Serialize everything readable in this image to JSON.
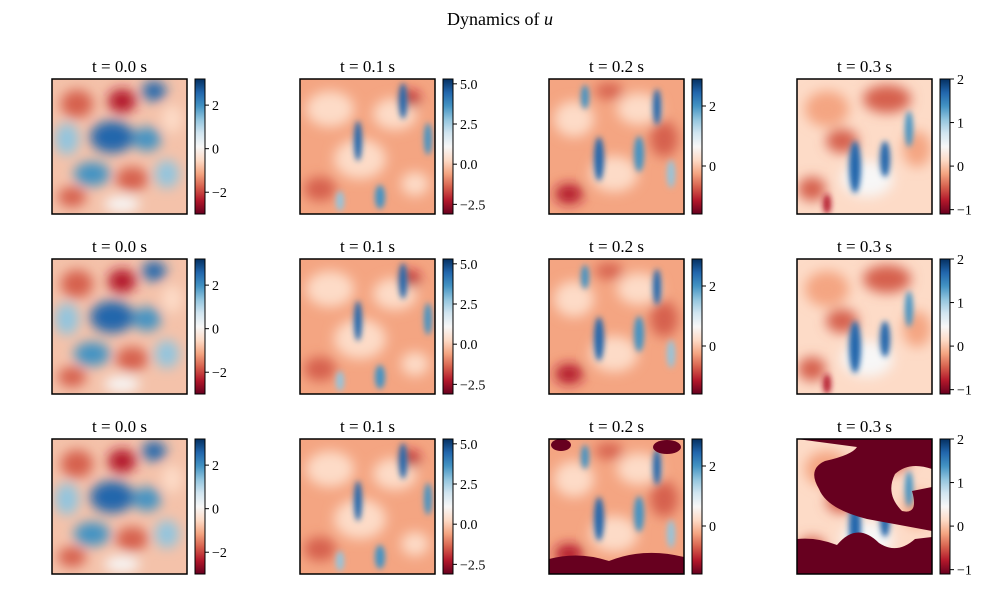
{
  "figure": {
    "title_prefix": "Dynamics of ",
    "title_symbol": "u"
  },
  "colors": {
    "colormap": "RdBu",
    "axes_frame": "#000000",
    "background": "#ffffff",
    "saturated_low": "#67001f"
  },
  "chart_data": [
    {
      "type": "heatmap",
      "row": 0,
      "col": 0,
      "title": "t = 0.0 s",
      "colormap": "RdBu",
      "clim": [
        -3.0,
        3.2
      ],
      "colorbar_ticks": [
        -2,
        0,
        2
      ],
      "colorbar_tick_labels": [
        "−2",
        "0",
        "2"
      ],
      "field_variant": 0,
      "saturated_low_regions": 0
    },
    {
      "type": "heatmap",
      "row": 0,
      "col": 1,
      "title": "t = 0.1 s",
      "colormap": "RdBu",
      "clim": [
        -3.1,
        5.3
      ],
      "colorbar_ticks": [
        -2.5,
        0.0,
        2.5,
        5.0
      ],
      "colorbar_tick_labels": [
        "−2.5",
        "0.0",
        "2.5",
        "5.0"
      ],
      "field_variant": 1,
      "saturated_low_regions": 0
    },
    {
      "type": "heatmap",
      "row": 0,
      "col": 2,
      "title": "t = 0.2 s",
      "colormap": "RdBu",
      "clim": [
        -1.6,
        2.9
      ],
      "colorbar_ticks": [
        0,
        2
      ],
      "colorbar_tick_labels": [
        "0",
        "2"
      ],
      "field_variant": 2,
      "saturated_low_regions": 0
    },
    {
      "type": "heatmap",
      "row": 0,
      "col": 3,
      "title": "t = 0.3 s",
      "colormap": "RdBu",
      "clim": [
        -1.1,
        2.0
      ],
      "colorbar_ticks": [
        -1,
        0,
        1,
        2
      ],
      "colorbar_tick_labels": [
        "−1",
        "0",
        "1",
        "2"
      ],
      "field_variant": 3,
      "saturated_low_regions": 0
    },
    {
      "type": "heatmap",
      "row": 1,
      "col": 0,
      "title": "t = 0.0 s",
      "colormap": "RdBu",
      "clim": [
        -3.0,
        3.2
      ],
      "colorbar_ticks": [
        -2,
        0,
        2
      ],
      "colorbar_tick_labels": [
        "−2",
        "0",
        "2"
      ],
      "field_variant": 0,
      "saturated_low_regions": 0
    },
    {
      "type": "heatmap",
      "row": 1,
      "col": 1,
      "title": "t = 0.1 s",
      "colormap": "RdBu",
      "clim": [
        -3.1,
        5.3
      ],
      "colorbar_ticks": [
        -2.5,
        0.0,
        2.5,
        5.0
      ],
      "colorbar_tick_labels": [
        "−2.5",
        "0.0",
        "2.5",
        "5.0"
      ],
      "field_variant": 1,
      "saturated_low_regions": 0
    },
    {
      "type": "heatmap",
      "row": 1,
      "col": 2,
      "title": "t = 0.2 s",
      "colormap": "RdBu",
      "clim": [
        -1.6,
        2.9
      ],
      "colorbar_ticks": [
        0,
        2
      ],
      "colorbar_tick_labels": [
        "0",
        "2"
      ],
      "field_variant": 2,
      "saturated_low_regions": 0
    },
    {
      "type": "heatmap",
      "row": 1,
      "col": 3,
      "title": "t = 0.3 s",
      "colormap": "RdBu",
      "clim": [
        -1.1,
        2.0
      ],
      "colorbar_ticks": [
        -1,
        0,
        1,
        2
      ],
      "colorbar_tick_labels": [
        "−1",
        "0",
        "1",
        "2"
      ],
      "field_variant": 3,
      "saturated_low_regions": 0
    },
    {
      "type": "heatmap",
      "row": 2,
      "col": 0,
      "title": "t = 0.0 s",
      "colormap": "RdBu",
      "clim": [
        -3.0,
        3.2
      ],
      "colorbar_ticks": [
        -2,
        0,
        2
      ],
      "colorbar_tick_labels": [
        "−2",
        "0",
        "2"
      ],
      "field_variant": 0,
      "saturated_low_regions": 0
    },
    {
      "type": "heatmap",
      "row": 2,
      "col": 1,
      "title": "t = 0.1 s",
      "colormap": "RdBu",
      "clim": [
        -3.1,
        5.3
      ],
      "colorbar_ticks": [
        -2.5,
        0.0,
        2.5,
        5.0
      ],
      "colorbar_tick_labels": [
        "−2.5",
        "0.0",
        "2.5",
        "5.0"
      ],
      "field_variant": 1,
      "saturated_low_regions": 0
    },
    {
      "type": "heatmap",
      "row": 2,
      "col": 2,
      "title": "t = 0.2 s",
      "colormap": "RdBu",
      "clim": [
        -1.6,
        2.9
      ],
      "colorbar_ticks": [
        0,
        2
      ],
      "colorbar_tick_labels": [
        "0",
        "2"
      ],
      "field_variant": 2,
      "saturated_low_regions": 1
    },
    {
      "type": "heatmap",
      "row": 2,
      "col": 3,
      "title": "t = 0.3 s",
      "colormap": "RdBu",
      "clim": [
        -1.1,
        2.0
      ],
      "colorbar_ticks": [
        -1,
        0,
        1,
        2
      ],
      "colorbar_tick_labels": [
        "−1",
        "0",
        "1",
        "2"
      ],
      "field_variant": 3,
      "saturated_low_regions": 2
    }
  ]
}
